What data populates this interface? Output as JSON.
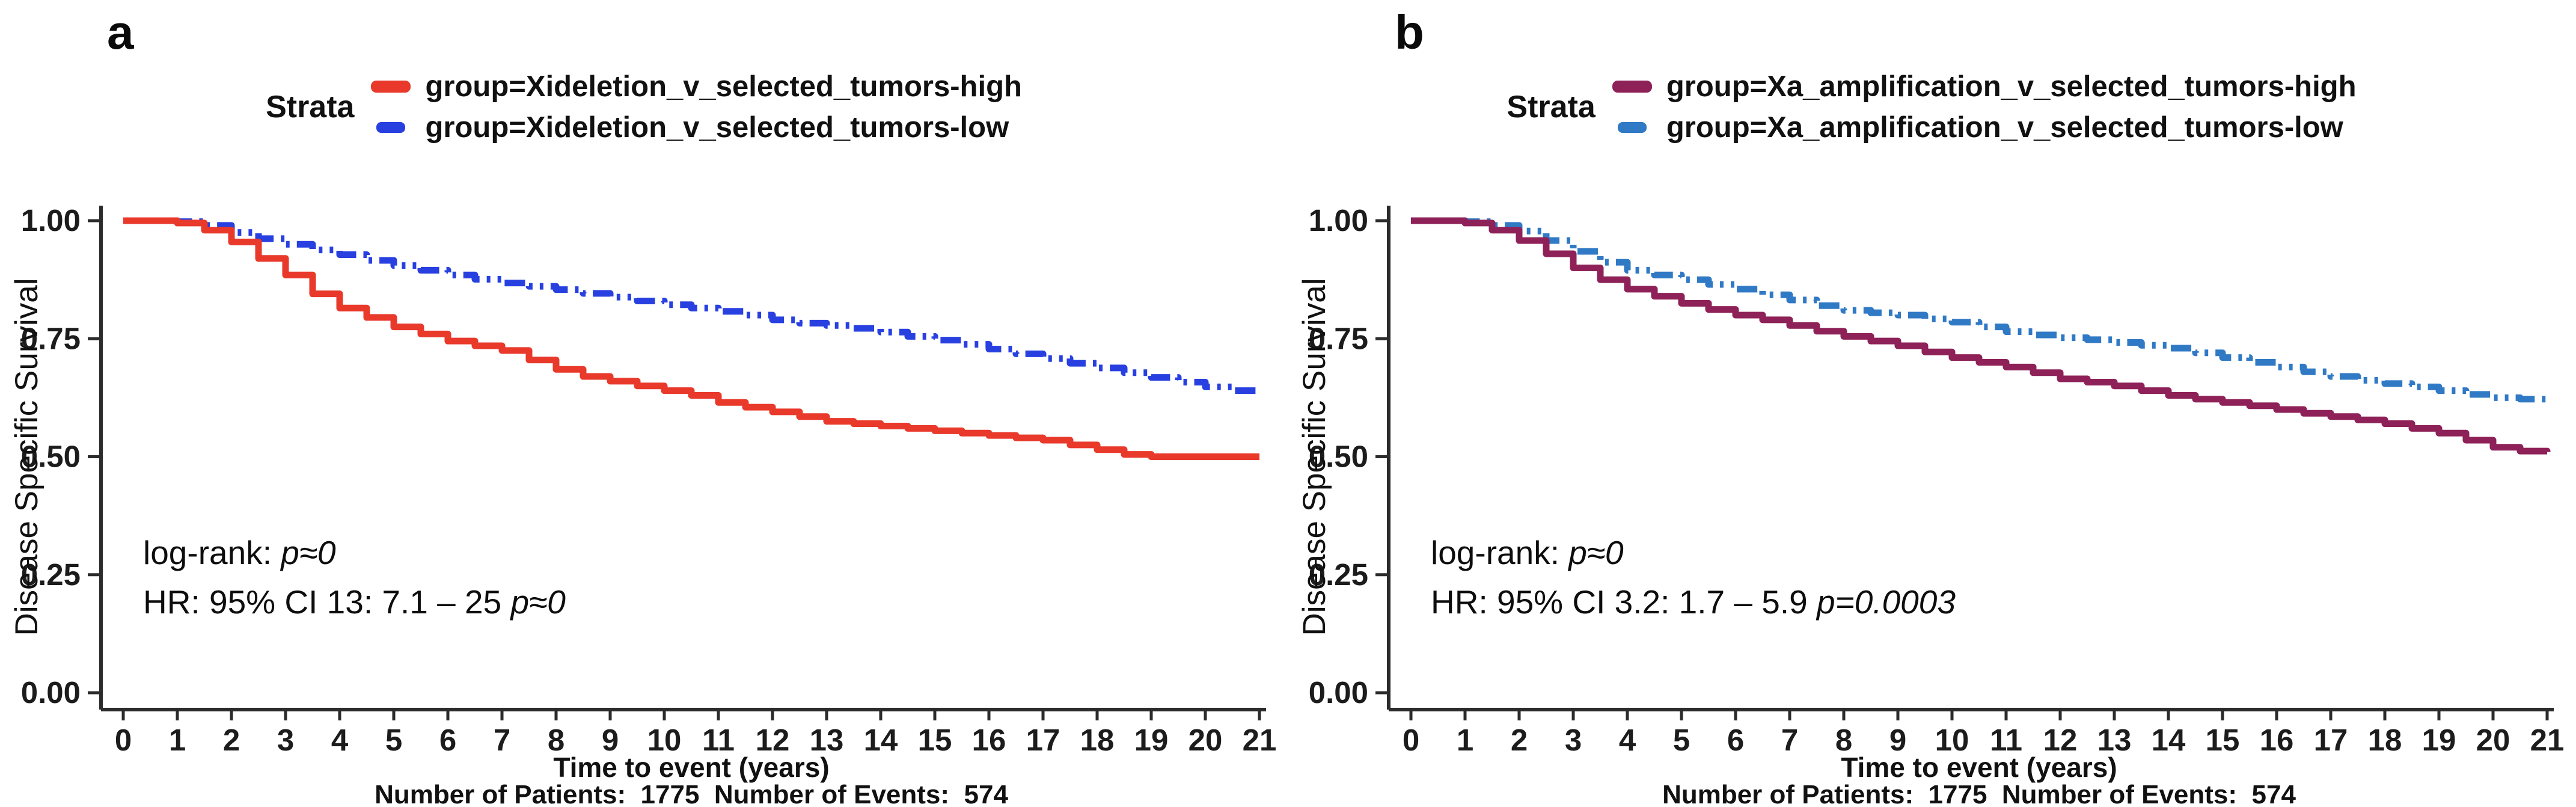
{
  "figure_footer": "Number of Patients:  1775  Number of Events:  574",
  "chart_data": [
    {
      "type": "line",
      "panel_letter": "a",
      "title": "",
      "legend_title": "Strata",
      "legend_position": "top",
      "xlabel": "Time to event (years)",
      "ylabel": "Disease Specific Survival",
      "footer": "Number of Patients:  1775  Number of Events:  574",
      "xlim": [
        0,
        21
      ],
      "ylim": [
        0.0,
        1.0
      ],
      "grid": false,
      "xticks": [
        0,
        1,
        2,
        3,
        4,
        5,
        6,
        7,
        8,
        9,
        10,
        11,
        12,
        13,
        14,
        15,
        16,
        17,
        18,
        19,
        20,
        21
      ],
      "yticks": [
        0.0,
        0.25,
        0.5,
        0.75,
        1.0
      ],
      "stats": {
        "logrank_label": "log-rank: ",
        "logrank_p": "p≈0",
        "hr_label": "HR: 95% CI 13: 7.1 – 25 ",
        "hr_p": "p≈0"
      },
      "x": [
        0,
        0.5,
        1,
        1.5,
        2,
        2.5,
        3,
        3.5,
        4,
        4.5,
        5,
        5.5,
        6,
        6.5,
        7,
        7.5,
        8,
        8.5,
        9,
        9.5,
        10,
        10.5,
        11,
        11.5,
        12,
        12.5,
        13,
        13.5,
        14,
        14.5,
        15,
        15.5,
        16,
        16.5,
        17,
        17.5,
        18,
        18.5,
        19,
        19.5,
        20,
        20.5,
        21
      ],
      "series": [
        {
          "name": "group=Xideletion_v_selected_tumors-high",
          "color": "#e8392b",
          "dash": "solid",
          "values": [
            1.0,
            1.0,
            0.995,
            0.98,
            0.955,
            0.92,
            0.885,
            0.845,
            0.815,
            0.795,
            0.775,
            0.76,
            0.745,
            0.735,
            0.725,
            0.705,
            0.685,
            0.67,
            0.66,
            0.65,
            0.64,
            0.63,
            0.615,
            0.605,
            0.595,
            0.585,
            0.575,
            0.57,
            0.565,
            0.56,
            0.555,
            0.55,
            0.545,
            0.54,
            0.535,
            0.525,
            0.515,
            0.505,
            0.5,
            0.5,
            0.5,
            0.5,
            0.5
          ]
        },
        {
          "name": "group=Xideletion_v_selected_tumors-low",
          "color": "#2840e0",
          "dash": "dashed",
          "values": [
            1.0,
            1.0,
            0.998,
            0.99,
            0.975,
            0.962,
            0.95,
            0.938,
            0.928,
            0.916,
            0.905,
            0.895,
            0.885,
            0.876,
            0.868,
            0.861,
            0.854,
            0.846,
            0.838,
            0.83,
            0.822,
            0.815,
            0.808,
            0.8,
            0.79,
            0.783,
            0.778,
            0.772,
            0.764,
            0.755,
            0.747,
            0.738,
            0.728,
            0.718,
            0.708,
            0.698,
            0.688,
            0.678,
            0.668,
            0.658,
            0.648,
            0.64,
            0.635
          ]
        }
      ]
    },
    {
      "type": "line",
      "panel_letter": "b",
      "title": "",
      "legend_title": "Strata",
      "legend_position": "top",
      "xlabel": "Time to event (years)",
      "ylabel": "Disease Specific Survival",
      "footer": "Number of Patients:  1775  Number of Events:  574",
      "xlim": [
        0,
        21
      ],
      "ylim": [
        0.0,
        1.0
      ],
      "grid": false,
      "xticks": [
        0,
        1,
        2,
        3,
        4,
        5,
        6,
        7,
        8,
        9,
        10,
        11,
        12,
        13,
        14,
        15,
        16,
        17,
        18,
        19,
        20,
        21
      ],
      "yticks": [
        0.0,
        0.25,
        0.5,
        0.75,
        1.0
      ],
      "stats": {
        "logrank_label": "log-rank: ",
        "logrank_p": "p≈0",
        "hr_label": "HR: 95% CI 3.2: 1.7 – 5.9 ",
        "hr_p": "p=0.0003"
      },
      "x": [
        0,
        0.5,
        1,
        1.5,
        2,
        2.5,
        3,
        3.5,
        4,
        4.5,
        5,
        5.5,
        6,
        6.5,
        7,
        7.5,
        8,
        8.5,
        9,
        9.5,
        10,
        10.5,
        11,
        11.5,
        12,
        12.5,
        13,
        13.5,
        14,
        14.5,
        15,
        15.5,
        16,
        16.5,
        17,
        17.5,
        18,
        18.5,
        19,
        19.5,
        20,
        20.5,
        21
      ],
      "series": [
        {
          "name": "group=Xa_amplification_v_selected_tumors-high",
          "color": "#8e2158",
          "dash": "solid",
          "values": [
            1.0,
            1.0,
            0.995,
            0.98,
            0.958,
            0.93,
            0.9,
            0.875,
            0.855,
            0.84,
            0.825,
            0.812,
            0.8,
            0.79,
            0.778,
            0.766,
            0.755,
            0.745,
            0.735,
            0.722,
            0.71,
            0.7,
            0.69,
            0.678,
            0.665,
            0.658,
            0.65,
            0.64,
            0.63,
            0.622,
            0.615,
            0.608,
            0.6,
            0.592,
            0.585,
            0.578,
            0.57,
            0.56,
            0.55,
            0.535,
            0.52,
            0.512,
            0.51
          ]
        },
        {
          "name": "group=Xa_amplification_v_selected_tumors-low",
          "color": "#3079c5",
          "dash": "dashed",
          "values": [
            1.0,
            1.0,
            0.998,
            0.99,
            0.978,
            0.958,
            0.935,
            0.912,
            0.895,
            0.885,
            0.875,
            0.865,
            0.855,
            0.843,
            0.832,
            0.82,
            0.81,
            0.805,
            0.8,
            0.792,
            0.785,
            0.775,
            0.765,
            0.758,
            0.752,
            0.748,
            0.742,
            0.736,
            0.73,
            0.72,
            0.71,
            0.7,
            0.69,
            0.68,
            0.67,
            0.662,
            0.655,
            0.648,
            0.64,
            0.632,
            0.625,
            0.622,
            0.62
          ]
        }
      ]
    }
  ]
}
